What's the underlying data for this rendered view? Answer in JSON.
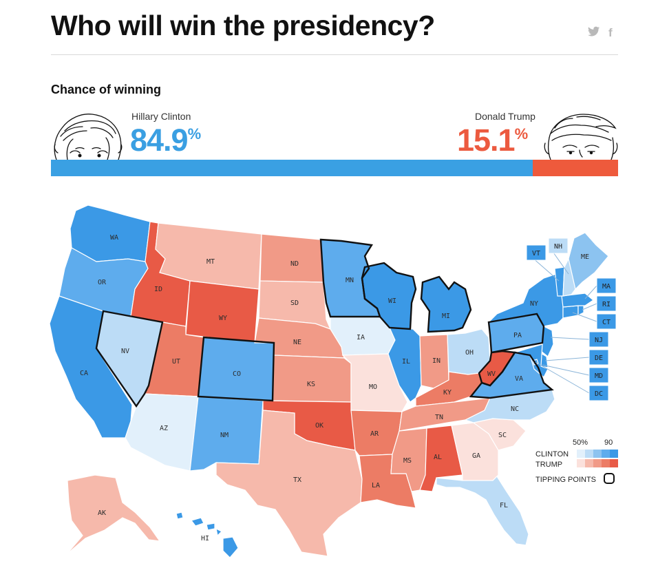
{
  "header": {
    "title": "Who will win the presidency?",
    "share_twitter": "🐦",
    "share_facebook": "f"
  },
  "forecast": {
    "subtitle": "Chance of winning",
    "clinton": {
      "name": "Hillary Clinton",
      "chance": "84.9",
      "chance_value": 84.9,
      "unit": "%",
      "color": "#3aa0e3"
    },
    "trump": {
      "name": "Donald Trump",
      "chance": "15.1",
      "chance_value": 15.1,
      "unit": "%",
      "color": "#ee5a3c"
    }
  },
  "map": {
    "states": {
      "WA": {
        "party": "clinton",
        "shade": 5
      },
      "OR": {
        "party": "clinton",
        "shade": 4
      },
      "CA": {
        "party": "clinton",
        "shade": 5
      },
      "NV": {
        "party": "clinton",
        "shade": 2,
        "tipping": true
      },
      "ID": {
        "party": "trump",
        "shade": 5
      },
      "MT": {
        "party": "trump",
        "shade": 2
      },
      "WY": {
        "party": "trump",
        "shade": 5
      },
      "UT": {
        "party": "trump",
        "shade": 4
      },
      "AZ": {
        "party": "clinton",
        "shade": 1
      },
      "CO": {
        "party": "clinton",
        "shade": 4,
        "tipping": true
      },
      "NM": {
        "party": "clinton",
        "shade": 4
      },
      "ND": {
        "party": "trump",
        "shade": 3
      },
      "SD": {
        "party": "trump",
        "shade": 2
      },
      "NE": {
        "party": "trump",
        "shade": 3
      },
      "KS": {
        "party": "trump",
        "shade": 3
      },
      "OK": {
        "party": "trump",
        "shade": 5
      },
      "TX": {
        "party": "trump",
        "shade": 2
      },
      "MN": {
        "party": "clinton",
        "shade": 4,
        "tipping": true
      },
      "IA": {
        "party": "clinton",
        "shade": 1
      },
      "MO": {
        "party": "trump",
        "shade": 1
      },
      "AR": {
        "party": "trump",
        "shade": 4
      },
      "LA": {
        "party": "trump",
        "shade": 4
      },
      "WI": {
        "party": "clinton",
        "shade": 5,
        "tipping": true
      },
      "IL": {
        "party": "clinton",
        "shade": 5
      },
      "MI": {
        "party": "clinton",
        "shade": 5,
        "tipping": true
      },
      "IN": {
        "party": "trump",
        "shade": 3
      },
      "OH": {
        "party": "clinton",
        "shade": 2
      },
      "KY": {
        "party": "trump",
        "shade": 4
      },
      "TN": {
        "party": "trump",
        "shade": 3
      },
      "MS": {
        "party": "trump",
        "shade": 3
      },
      "AL": {
        "party": "trump",
        "shade": 5
      },
      "WV": {
        "party": "trump",
        "shade": 5,
        "tipping": true
      },
      "VA": {
        "party": "clinton",
        "shade": 4,
        "tipping": true
      },
      "NC": {
        "party": "clinton",
        "shade": 2
      },
      "SC": {
        "party": "trump",
        "shade": 1
      },
      "GA": {
        "party": "trump",
        "shade": 1
      },
      "FL": {
        "party": "clinton",
        "shade": 2
      },
      "PA": {
        "party": "clinton",
        "shade": 4,
        "tipping": true
      },
      "NY": {
        "party": "clinton",
        "shade": 5
      },
      "ME": {
        "party": "clinton",
        "shade": 3
      },
      "NH": {
        "party": "clinton",
        "shade": 2
      },
      "VT": {
        "party": "clinton",
        "shade": 5
      },
      "MA": {
        "party": "clinton",
        "shade": 5
      },
      "RI": {
        "party": "clinton",
        "shade": 5
      },
      "CT": {
        "party": "clinton",
        "shade": 5
      },
      "NJ": {
        "party": "clinton",
        "shade": 5
      },
      "DE": {
        "party": "clinton",
        "shade": 5
      },
      "MD": {
        "party": "clinton",
        "shade": 5
      },
      "DC": {
        "party": "clinton",
        "shade": 5
      },
      "AK": {
        "party": "trump",
        "shade": 2
      },
      "HI": {
        "party": "clinton",
        "shade": 5
      }
    },
    "labels": {
      "WA": "WA",
      "OR": "OR",
      "CA": "CA",
      "NV": "NV",
      "ID": "ID",
      "MT": "MT",
      "WY": "WY",
      "UT": "UT",
      "AZ": "AZ",
      "CO": "CO",
      "NM": "NM",
      "ND": "ND",
      "SD": "SD",
      "NE": "NE",
      "KS": "KS",
      "OK": "OK",
      "TX": "TX",
      "MN": "MN",
      "IA": "IA",
      "MO": "MO",
      "AR": "AR",
      "LA": "LA",
      "WI": "WI",
      "IL": "IL",
      "MI": "MI",
      "IN": "IN",
      "OH": "OH",
      "KY": "KY",
      "TN": "TN",
      "MS": "MS",
      "AL": "AL",
      "WV": "WV",
      "VA": "VA",
      "NC": "NC",
      "SC": "SC",
      "GA": "GA",
      "FL": "FL",
      "PA": "PA",
      "NY": "NY",
      "ME": "ME",
      "AK": "AK",
      "HI": "HI",
      "VT": "VT",
      "NH": "NH",
      "MA": "MA",
      "RI": "RI",
      "CT": "CT",
      "NJ": "NJ",
      "DE": "DE",
      "MD": "MD",
      "DC": "DC"
    },
    "colors": {
      "clinton": [
        "#e2f0fb",
        "#bcdcf6",
        "#8cc3f0",
        "#5eaced",
        "#3b99e6"
      ],
      "trump": [
        "#fbe1dc",
        "#f6b9ab",
        "#f19a87",
        "#ec7c65",
        "#e85a46"
      ]
    }
  },
  "legend": {
    "scale_low": "50%",
    "scale_high": "90",
    "clinton_label": "CLINTON",
    "trump_label": "TRUMP",
    "tipping_label": "TIPPING POINTS"
  }
}
